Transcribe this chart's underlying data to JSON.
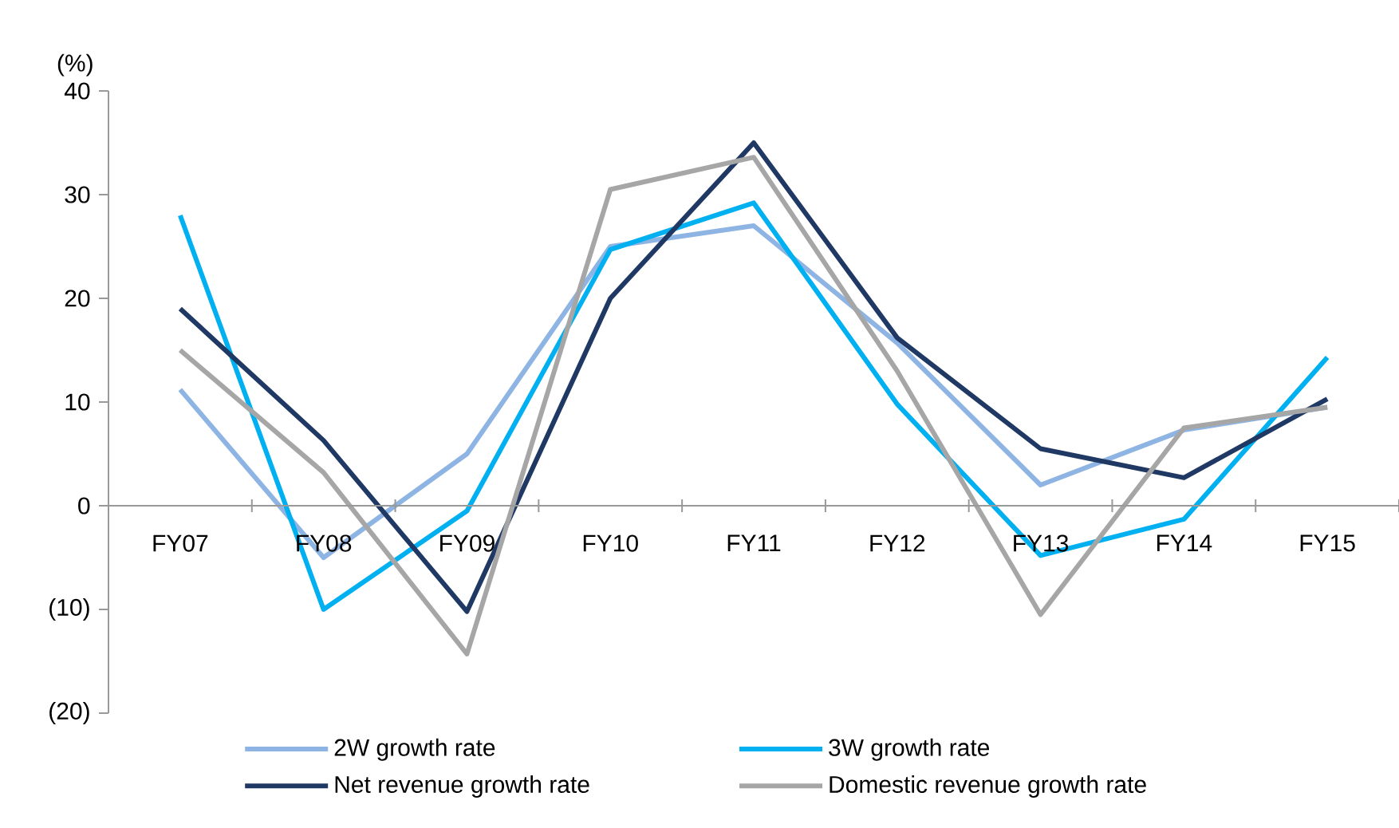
{
  "chart_data": {
    "type": "line",
    "ylabel": "(%)",
    "categories": [
      "FY07",
      "FY08",
      "FY09",
      "FY10",
      "FY11",
      "FY12",
      "FY13",
      "FY14",
      "FY15"
    ],
    "series": [
      {
        "name": "2W growth rate",
        "color": "#8eb4e3",
        "values": [
          11.2,
          -5,
          5,
          25,
          27,
          15.7,
          2,
          7.3,
          9.5
        ]
      },
      {
        "name": "3W growth rate",
        "color": "#00b0f0",
        "values": [
          28,
          -10,
          -0.5,
          24.7,
          29.2,
          9.8,
          -4.8,
          -1.3,
          14.3
        ]
      },
      {
        "name": "Net revenue growth rate",
        "color": "#1f3864",
        "values": [
          19,
          6.3,
          -10.2,
          20,
          35,
          16.2,
          5.5,
          2.7,
          10.3
        ]
      },
      {
        "name": "Domestic revenue growth rate",
        "color": "#a6a6a6",
        "values": [
          15,
          3.2,
          -14.3,
          30.5,
          33.6,
          13,
          -10.5,
          7.5,
          9.5
        ]
      }
    ],
    "ylim": [
      -20,
      40
    ],
    "yticks": [
      {
        "value": -20,
        "label": "(20)"
      },
      {
        "value": -10,
        "label": "(10)"
      },
      0,
      10,
      20,
      30,
      40
    ],
    "grid": false,
    "legend": "bottom",
    "marker": "none",
    "line_style": "solid"
  }
}
